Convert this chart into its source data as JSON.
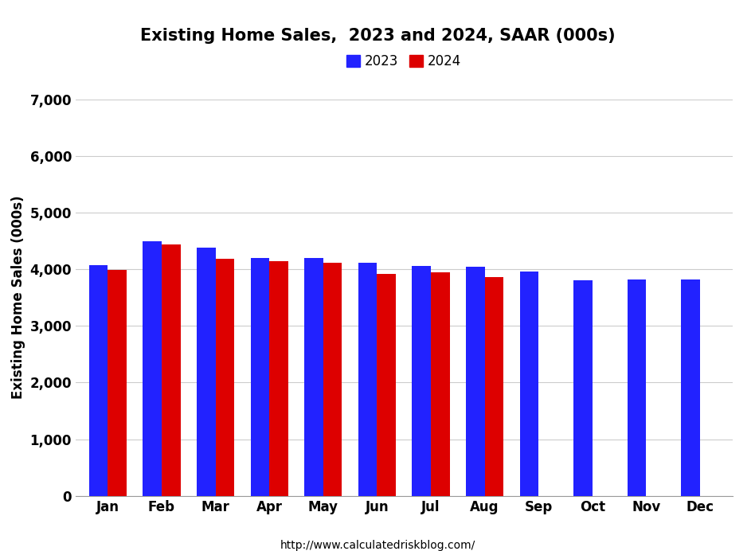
{
  "title": "Existing Home Sales,  2023 and 2024, SAAR (000s)",
  "ylabel": "Existing Home Sales (000s)",
  "months": [
    "Jan",
    "Feb",
    "Mar",
    "Apr",
    "May",
    "Jun",
    "Jul",
    "Aug",
    "Sep",
    "Oct",
    "Nov",
    "Dec"
  ],
  "values_2023": [
    4070,
    4500,
    4380,
    4200,
    4200,
    4110,
    4060,
    4040,
    3960,
    3800,
    3820,
    3820
  ],
  "values_2024": [
    3990,
    4430,
    4190,
    4140,
    4110,
    3910,
    3950,
    3860,
    null,
    null,
    null,
    null
  ],
  "color_2023": "#2222FF",
  "color_2024": "#DD0000",
  "ylim": [
    0,
    7000
  ],
  "yticks": [
    0,
    1000,
    2000,
    3000,
    4000,
    5000,
    6000,
    7000
  ],
  "legend_labels": [
    "2023",
    "2024"
  ],
  "footnote": "http://www.calculatedriskblog.com/",
  "bar_width": 0.35,
  "background_color": "#FFFFFF",
  "grid_color": "#CCCCCC"
}
